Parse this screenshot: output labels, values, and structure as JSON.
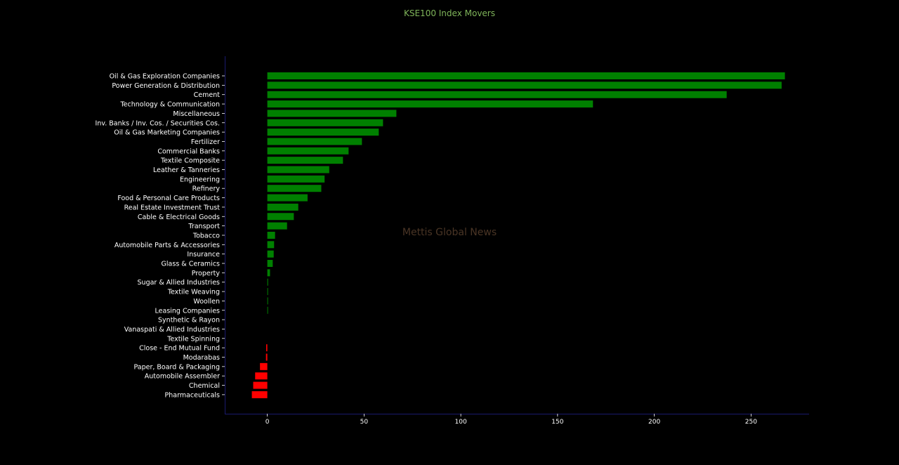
{
  "chart_data": {
    "type": "bar",
    "orientation": "horizontal",
    "title": "KSE100 Index Movers",
    "xlabel": "",
    "ylabel": "",
    "xlim": [
      -22,
      280
    ],
    "xticks": [
      0,
      50,
      100,
      150,
      200,
      250
    ],
    "grid": false,
    "watermark": "Mettis Global News",
    "categories": [
      "Oil & Gas Exploration Companies",
      "Power Generation & Distribution",
      "Cement",
      "Technology & Communication",
      "Miscellaneous",
      "Inv. Banks / Inv. Cos. / Securities Cos.",
      "Oil & Gas Marketing Companies",
      "Fertilizer",
      "Commercial Banks",
      "Textile Composite",
      "Leather & Tanneries",
      "Engineering",
      "Refinery",
      "Food & Personal Care Products",
      "Real Estate Investment Trust",
      "Cable & Electrical Goods",
      "Transport",
      "Tobacco",
      "Automobile Parts & Accessories",
      "Insurance",
      "Glass & Ceramics",
      "Property",
      "Sugar & Allied Industries",
      "Textile Weaving",
      "Woollen",
      "Leasing Companies",
      "Synthetic & Rayon",
      "Vanaspati & Allied Industries",
      "Textile Spinning",
      "Close - End Mutual Fund",
      "Modarabas",
      "Paper, Board & Packaging",
      "Automobile Assembler",
      "Chemical",
      "Pharmaceuticals"
    ],
    "values": [
      267.5,
      265.8,
      237.4,
      168.3,
      66.7,
      59.8,
      57.6,
      48.9,
      42.0,
      39.1,
      32.0,
      29.6,
      27.9,
      20.8,
      16.0,
      13.7,
      10.2,
      4.0,
      3.5,
      3.3,
      2.8,
      1.4,
      0.4,
      0.3,
      0.3,
      0.3,
      0.0,
      0.0,
      0.0,
      -0.6,
      -0.7,
      -3.8,
      -6.3,
      -7.3,
      -8.0
    ],
    "colors": {
      "positive": "#008000",
      "negative": "#ff0000"
    }
  },
  "theme": {
    "background": "#000000",
    "title_color": "#7fb55a",
    "label_color": "#ffffff",
    "axis_color": "#1a1a6e",
    "watermark_color": "#4a3525"
  }
}
